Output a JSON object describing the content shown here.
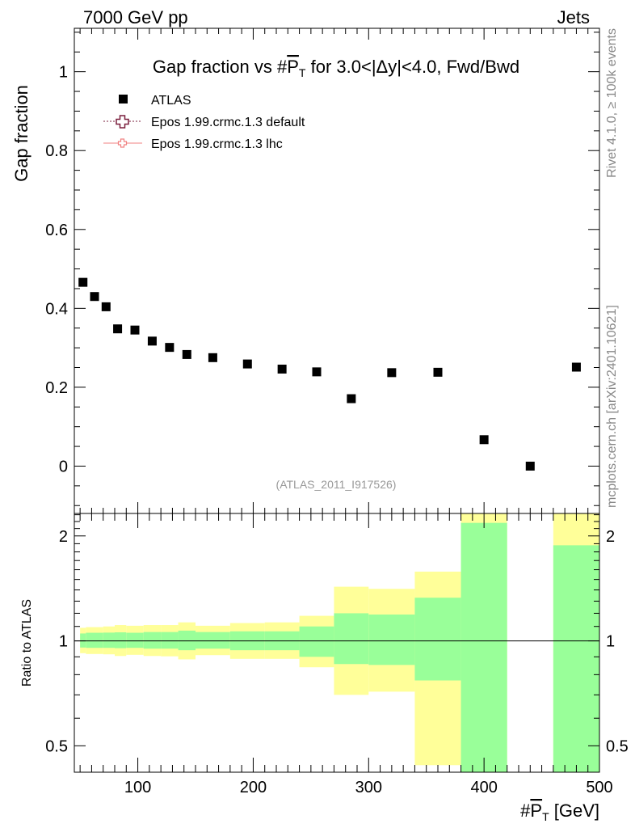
{
  "header": {
    "left": "7000 GeV pp",
    "right": "Jets"
  },
  "side_text": {
    "rivet": "Rivet 4.1.0, ≥ 100k events",
    "mcplots": "mcplots.cern.ch [arXiv:2401.10621]"
  },
  "chart_data": [
    {
      "type": "scatter",
      "title": "Gap fraction vs #P_T for 3.0<|Δy|<4.0, Fwd/Bwd",
      "title_parts": {
        "pre": "Gap fraction vs #",
        "P": "P",
        "T": "T",
        "post": " for 3.0<|Δy|<4.0, Fwd/Bwd"
      },
      "ylabel": "Gap fraction",
      "xlim": [
        45,
        500
      ],
      "ylim": [
        -0.12,
        1.11
      ],
      "yticks": [
        0,
        0.2,
        0.4,
        0.6,
        0.8,
        1
      ],
      "ytick_labels": [
        "0",
        "0.2",
        "0.4",
        "0.6",
        "0.8",
        "1"
      ],
      "analysis_label": "(ATLAS_2011_I917526)",
      "legend": [
        {
          "name": "ATLAS",
          "color": "#000000",
          "marker": "square"
        },
        {
          "name": "Epos 1.99.crmc.1.3 default",
          "color": "#7a1f3d",
          "marker": "open-cross"
        },
        {
          "name": "Epos 1.99.crmc.1.3 lhc",
          "color": "#f08080",
          "marker": "open-cross-line"
        }
      ],
      "series": [
        {
          "name": "ATLAS",
          "points": [
            {
              "x": 52.5,
              "y": 0.466
            },
            {
              "x": 62.5,
              "y": 0.43
            },
            {
              "x": 72.5,
              "y": 0.404
            },
            {
              "x": 82.5,
              "y": 0.348
            },
            {
              "x": 97.5,
              "y": 0.345
            },
            {
              "x": 112.5,
              "y": 0.317
            },
            {
              "x": 127.5,
              "y": 0.301
            },
            {
              "x": 142.5,
              "y": 0.283
            },
            {
              "x": 165,
              "y": 0.275
            },
            {
              "x": 195,
              "y": 0.259
            },
            {
              "x": 225,
              "y": 0.246
            },
            {
              "x": 255,
              "y": 0.239
            },
            {
              "x": 285,
              "y": 0.171
            },
            {
              "x": 320,
              "y": 0.237
            },
            {
              "x": 360,
              "y": 0.238
            },
            {
              "x": 400,
              "y": 0.067
            },
            {
              "x": 440,
              "y": 0.0
            },
            {
              "x": 480,
              "y": 0.251
            }
          ]
        }
      ]
    },
    {
      "type": "area",
      "ylabel": "Ratio to ATLAS",
      "xlabel": "#P_T [GeV]",
      "xlabel_parts": {
        "pre": "#",
        "P": "P",
        "T": "T",
        "post": " [GeV]"
      },
      "xlim": [
        45,
        500
      ],
      "ylim": [
        0.42,
        2.32
      ],
      "yscale": "log",
      "xticks": [
        100,
        200,
        300,
        400,
        500
      ],
      "xtick_labels": [
        "100",
        "200",
        "300",
        "400",
        "500"
      ],
      "yticks": [
        0.5,
        1,
        2
      ],
      "ytick_labels": [
        "0.5",
        "1",
        "2"
      ],
      "colors": {
        "inner": "#99ff99",
        "outer": "#ffff99",
        "reference": "#000000"
      },
      "bins": [
        {
          "lo": 50,
          "hi": 55,
          "inner": [
            0.957,
            1.05
          ],
          "outer": [
            0.922,
            1.09
          ]
        },
        {
          "lo": 55,
          "hi": 70,
          "inner": [
            0.955,
            1.055
          ],
          "outer": [
            0.917,
            1.095
          ]
        },
        {
          "lo": 70,
          "hi": 80,
          "inner": [
            0.955,
            1.056
          ],
          "outer": [
            0.915,
            1.1
          ]
        },
        {
          "lo": 80,
          "hi": 90,
          "inner": [
            0.953,
            1.058
          ],
          "outer": [
            0.905,
            1.11
          ]
        },
        {
          "lo": 90,
          "hi": 105,
          "inner": [
            0.955,
            1.055
          ],
          "outer": [
            0.912,
            1.105
          ]
        },
        {
          "lo": 105,
          "hi": 120,
          "inner": [
            0.95,
            1.06
          ],
          "outer": [
            0.905,
            1.11
          ]
        },
        {
          "lo": 120,
          "hi": 135,
          "inner": [
            0.95,
            1.06
          ],
          "outer": [
            0.903,
            1.11
          ]
        },
        {
          "lo": 135,
          "hi": 150,
          "inner": [
            0.94,
            1.07
          ],
          "outer": [
            0.885,
            1.13
          ]
        },
        {
          "lo": 150,
          "hi": 180,
          "inner": [
            0.95,
            1.06
          ],
          "outer": [
            0.91,
            1.105
          ]
        },
        {
          "lo": 180,
          "hi": 210,
          "inner": [
            0.94,
            1.065
          ],
          "outer": [
            0.888,
            1.125
          ]
        },
        {
          "lo": 210,
          "hi": 240,
          "inner": [
            0.94,
            1.065
          ],
          "outer": [
            0.888,
            1.13
          ]
        },
        {
          "lo": 240,
          "hi": 270,
          "inner": [
            0.9,
            1.1
          ],
          "outer": [
            0.84,
            1.18
          ]
        },
        {
          "lo": 270,
          "hi": 300,
          "inner": [
            0.858,
            1.2
          ],
          "outer": [
            0.7,
            1.43
          ]
        },
        {
          "lo": 300,
          "hi": 340,
          "inner": [
            0.853,
            1.19
          ],
          "outer": [
            0.715,
            1.41
          ]
        },
        {
          "lo": 340,
          "hi": 380,
          "inner": [
            0.77,
            1.33
          ],
          "outer": [
            0.44,
            1.58
          ]
        },
        {
          "lo": 380,
          "hi": 420,
          "inner": [
            0.42,
            2.18
          ],
          "outer": [
            0.42,
            2.32
          ]
        },
        {
          "lo": 460,
          "hi": 500,
          "inner": [
            0.42,
            1.88
          ],
          "outer": [
            0.42,
            2.32
          ]
        }
      ]
    }
  ]
}
